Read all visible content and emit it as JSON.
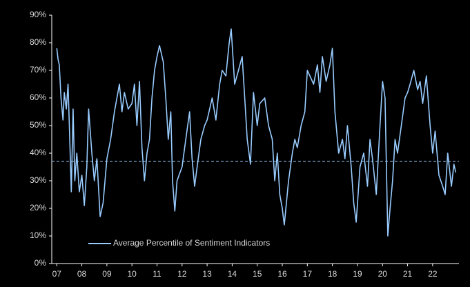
{
  "chart_data": {
    "type": "line",
    "series": [
      {
        "name": "Average Percentile of Sentiment Indicators",
        "color": "#99ccff",
        "x": [
          2007.0,
          2007.05,
          2007.1,
          2007.17,
          2007.25,
          2007.3,
          2007.38,
          2007.45,
          2007.52,
          2007.58,
          2007.65,
          2007.72,
          2007.8,
          2007.9,
          2008.0,
          2008.1,
          2008.2,
          2008.27,
          2008.4,
          2008.5,
          2008.6,
          2008.73,
          2008.85,
          2009.0,
          2009.15,
          2009.3,
          2009.4,
          2009.5,
          2009.6,
          2009.7,
          2009.85,
          2010.0,
          2010.1,
          2010.2,
          2010.3,
          2010.4,
          2010.5,
          2010.6,
          2010.7,
          2010.8,
          2010.9,
          2011.0,
          2011.1,
          2011.25,
          2011.35,
          2011.45,
          2011.55,
          2011.62,
          2011.71,
          2011.8,
          2012.0,
          2012.15,
          2012.3,
          2012.4,
          2012.5,
          2012.6,
          2012.75,
          2012.9,
          2013.0,
          2013.2,
          2013.35,
          2013.5,
          2013.6,
          2013.75,
          2013.88,
          2013.96,
          2014.1,
          2014.25,
          2014.4,
          2014.5,
          2014.6,
          2014.73,
          2014.85,
          2015.0,
          2015.1,
          2015.3,
          2015.45,
          2015.6,
          2015.7,
          2015.8,
          2015.9,
          2016.0,
          2016.08,
          2016.25,
          2016.4,
          2016.5,
          2016.6,
          2016.75,
          2016.9,
          2017.0,
          2017.1,
          2017.25,
          2017.4,
          2017.5,
          2017.6,
          2017.75,
          2017.9,
          2018.0,
          2018.1,
          2018.25,
          2018.4,
          2018.5,
          2018.6,
          2018.75,
          2018.85,
          2018.95,
          2019.1,
          2019.25,
          2019.4,
          2019.5,
          2019.6,
          2019.75,
          2019.9,
          2020.0,
          2020.1,
          2020.21,
          2020.3,
          2020.4,
          2020.5,
          2020.6,
          2020.75,
          2020.9,
          2021.0,
          2021.1,
          2021.25,
          2021.4,
          2021.5,
          2021.6,
          2021.75,
          2021.9,
          2022.0,
          2022.1,
          2022.25,
          2022.4,
          2022.5,
          2022.6,
          2022.75,
          2022.85,
          2022.92
        ],
        "values": [
          78,
          74,
          72,
          60,
          52,
          62,
          56,
          65,
          45,
          26,
          56,
          30,
          40,
          26,
          32,
          21,
          35,
          56,
          40,
          30,
          38,
          17,
          22,
          38,
          45,
          55,
          60,
          65,
          55,
          62,
          56,
          58,
          65,
          50,
          66,
          42,
          30,
          40,
          45,
          60,
          70,
          75,
          79,
          73,
          60,
          45,
          55,
          30,
          19,
          30,
          35,
          45,
          55,
          38,
          28,
          35,
          45,
          50,
          52,
          60,
          52,
          65,
          70,
          68,
          80,
          85,
          65,
          70,
          75,
          60,
          45,
          36,
          62,
          50,
          58,
          60,
          50,
          45,
          30,
          40,
          25,
          20,
          14,
          30,
          40,
          45,
          42,
          50,
          55,
          70,
          68,
          65,
          72,
          62,
          75,
          66,
          72,
          78,
          55,
          40,
          45,
          38,
          50,
          35,
          22,
          15,
          35,
          40,
          28,
          45,
          38,
          25,
          50,
          66,
          60,
          10,
          20,
          30,
          45,
          40,
          50,
          60,
          62,
          65,
          70,
          63,
          66,
          58,
          68,
          50,
          40,
          48,
          32,
          28,
          25,
          40,
          28,
          36,
          33
        ]
      }
    ],
    "reference_line": 37,
    "xlim": [
      2006.8,
      2023.05
    ],
    "xticks": [
      {
        "value": 2007,
        "label": "07"
      },
      {
        "value": 2008,
        "label": "08"
      },
      {
        "value": 2009,
        "label": "09"
      },
      {
        "value": 2010,
        "label": "10"
      },
      {
        "value": 2011,
        "label": "11"
      },
      {
        "value": 2012,
        "label": "12"
      },
      {
        "value": 2013,
        "label": "13"
      },
      {
        "value": 2014,
        "label": "14"
      },
      {
        "value": 2015,
        "label": "15"
      },
      {
        "value": 2016,
        "label": "16"
      },
      {
        "value": 2017,
        "label": "17"
      },
      {
        "value": 2018,
        "label": "18"
      },
      {
        "value": 2019,
        "label": "19"
      },
      {
        "value": 2020,
        "label": "20"
      },
      {
        "value": 2021,
        "label": "21"
      },
      {
        "value": 2022,
        "label": "22"
      }
    ],
    "ylim": [
      0,
      90
    ],
    "yticks": [
      {
        "value": 0,
        "label": "0%"
      },
      {
        "value": 10,
        "label": "10%"
      },
      {
        "value": 20,
        "label": "20%"
      },
      {
        "value": 30,
        "label": "30%"
      },
      {
        "value": 40,
        "label": "40%"
      },
      {
        "value": 50,
        "label": "50%"
      },
      {
        "value": 60,
        "label": "60%"
      },
      {
        "value": 70,
        "label": "70%"
      },
      {
        "value": 80,
        "label": "80%"
      },
      {
        "value": 90,
        "label": "90%"
      }
    ],
    "legend": "lower left"
  }
}
